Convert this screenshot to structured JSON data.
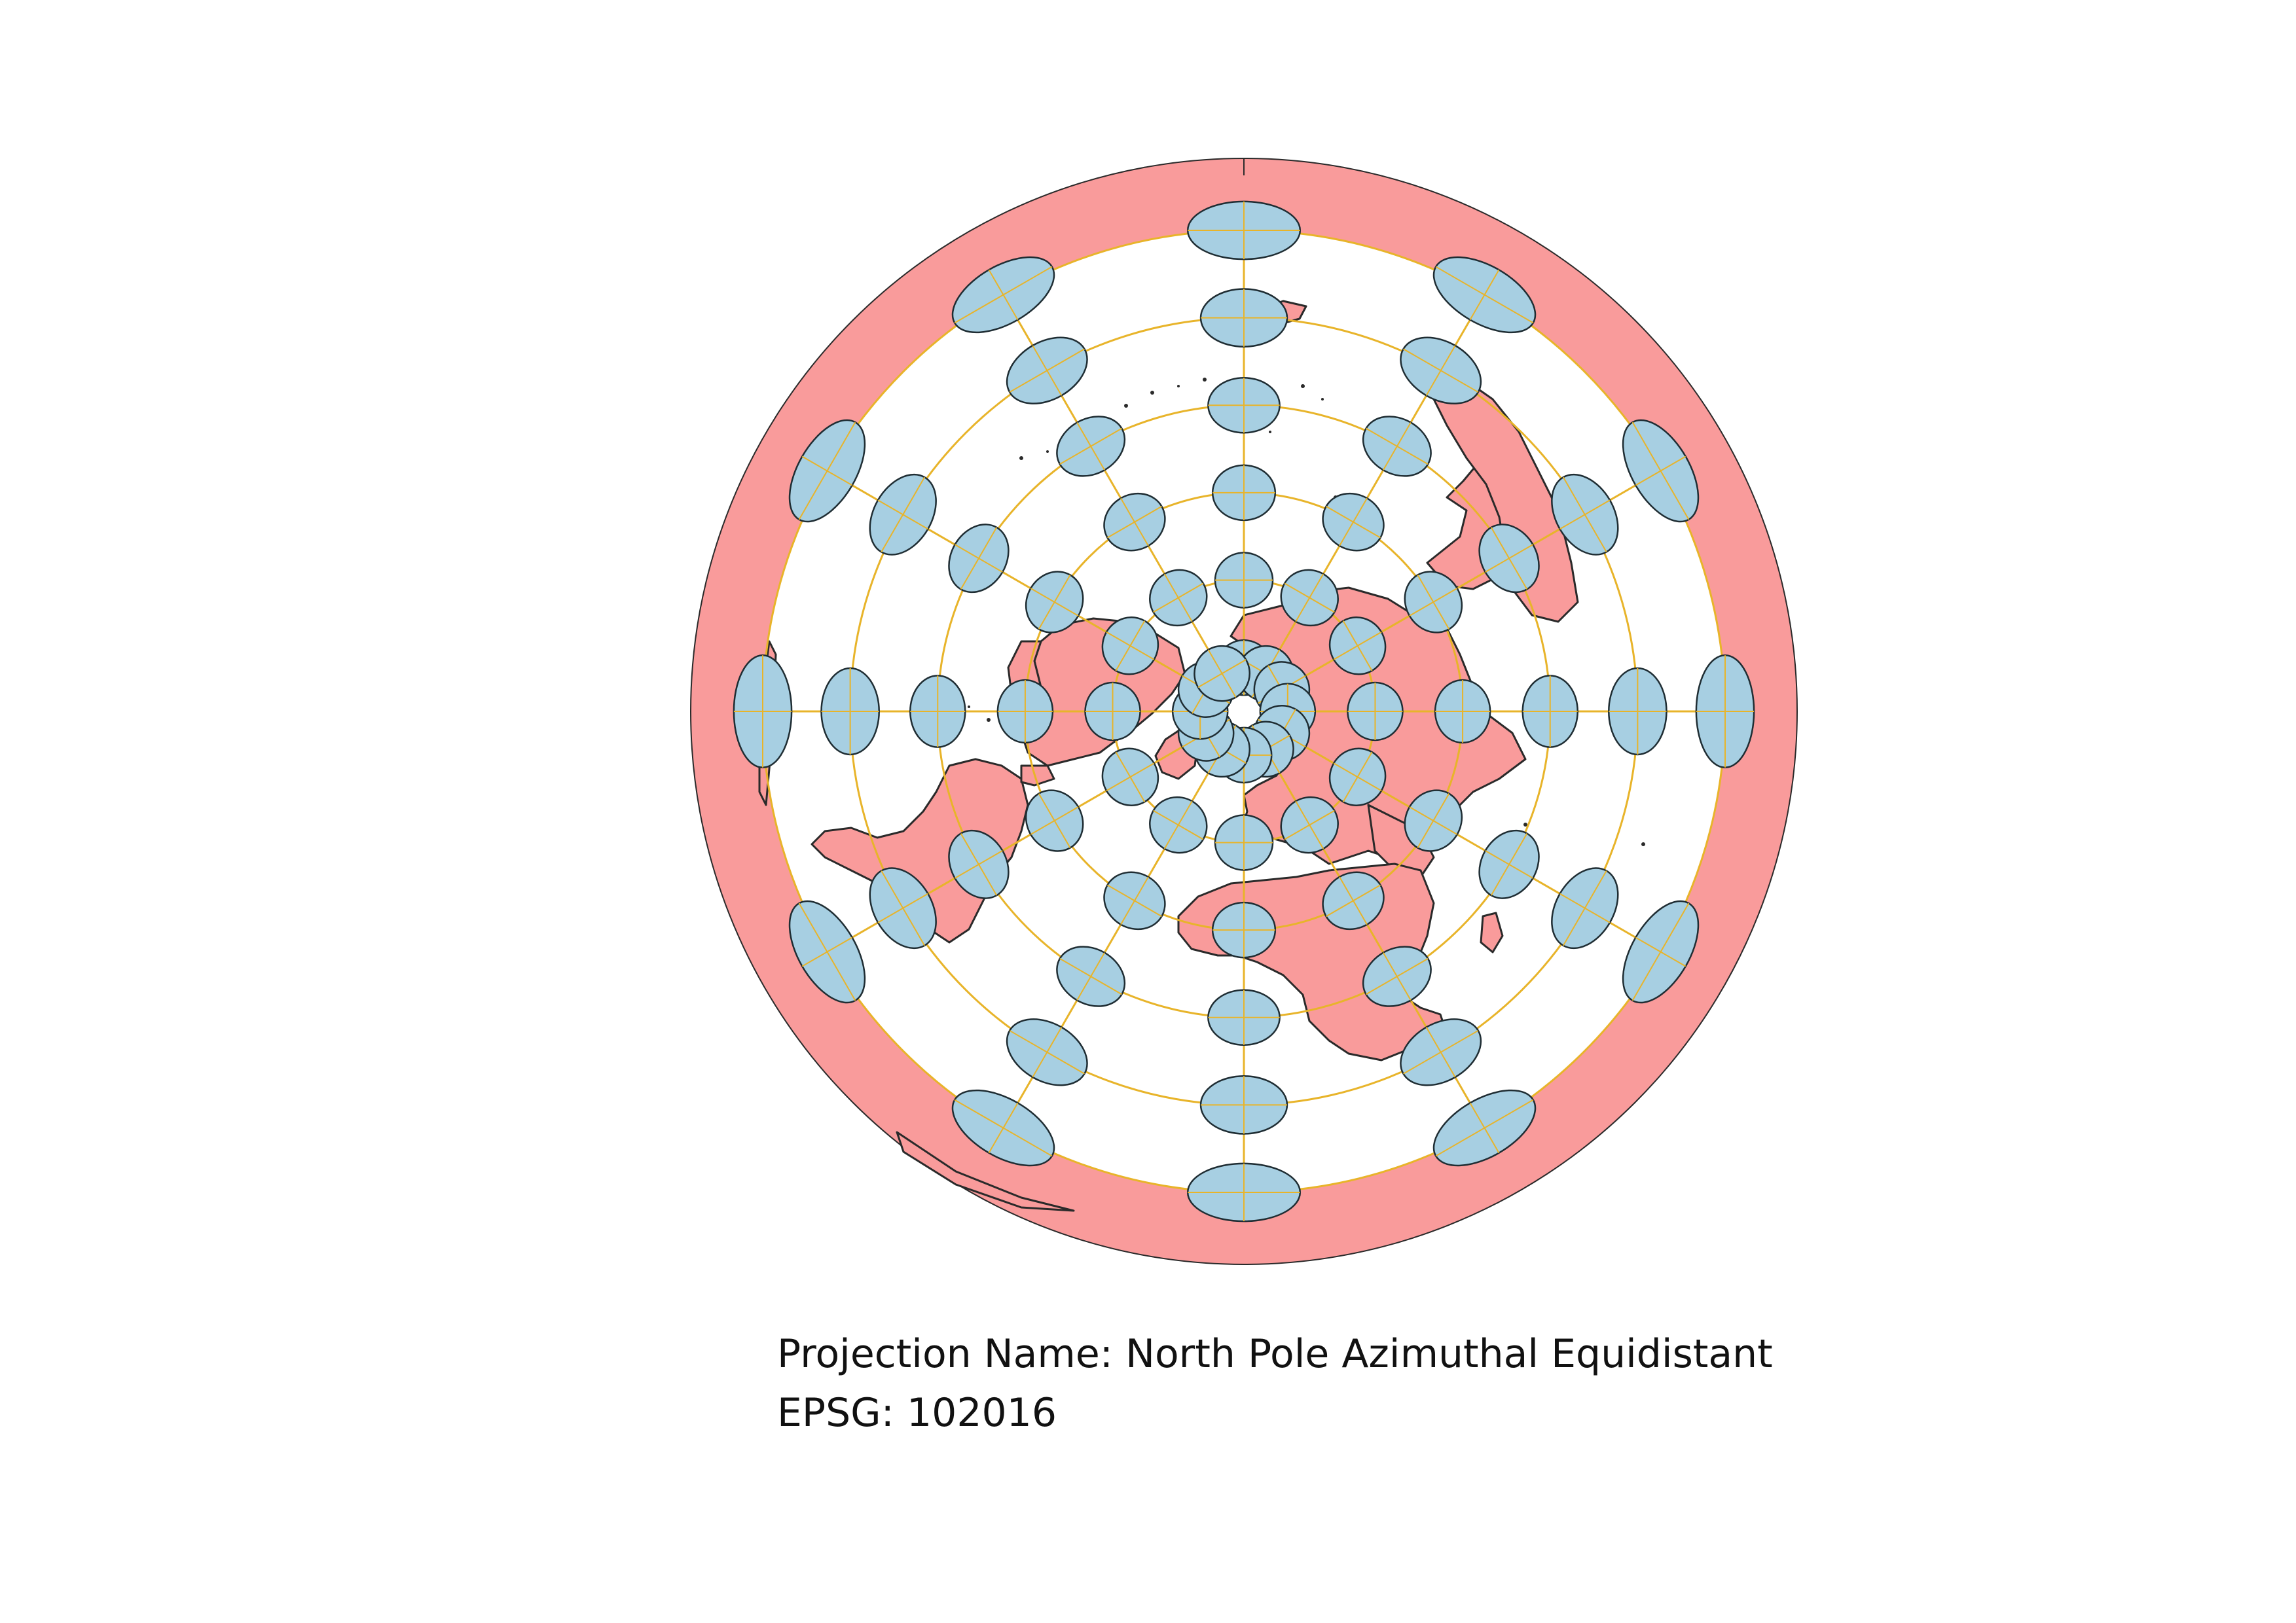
{
  "map": {
    "projection": "North Pole Azimuthal Equidistant",
    "colors": {
      "land": "#f99b9b",
      "ocean": "#ffffff",
      "outline": "#2a2a2a",
      "graticule": "#e8b42a",
      "tissot_fill": "#a7cfe2",
      "tissot_stroke": "#1f2d33"
    },
    "graticule_parallels_deg": [
      80,
      60,
      40,
      20,
      0,
      -20
    ],
    "graticule_meridian_step_deg": 30,
    "indicatrix_latitudes_deg": [
      80,
      60,
      40,
      20,
      0,
      -20
    ],
    "indicatrix_longitude_step_deg": 30
  },
  "caption": {
    "name_label": "Projection Name:",
    "name_value": "North Pole Azimuthal Equidistant",
    "epsg_label": "EPSG:",
    "epsg_value": "102016"
  }
}
